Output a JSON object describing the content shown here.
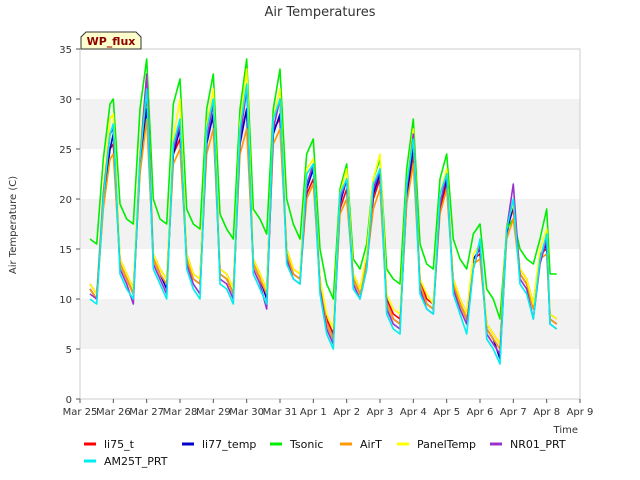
{
  "chart_data": {
    "type": "line",
    "title": "Air Temperatures",
    "xlabel": "Time",
    "ylabel": "Air Temperature (C)",
    "ylim": [
      0,
      35
    ],
    "yticks": [
      0,
      5,
      10,
      15,
      20,
      25,
      30,
      35
    ],
    "xlim": [
      0,
      17
    ],
    "xticks": [
      {
        "x": 0,
        "label": "Mar 25"
      },
      {
        "x": 1,
        "label": "Mar 26"
      },
      {
        "x": 2,
        "label": "Mar 27"
      },
      {
        "x": 3,
        "label": "Mar 28"
      },
      {
        "x": 4,
        "label": "Mar 29"
      },
      {
        "x": 5,
        "label": "Mar 30"
      },
      {
        "x": 6,
        "label": "Mar 31"
      },
      {
        "x": 7,
        "label": "Apr 1"
      },
      {
        "x": 8,
        "label": "Apr 2"
      },
      {
        "x": 9,
        "label": "Apr 3"
      },
      {
        "x": 10,
        "label": "Apr 4"
      },
      {
        "x": 11,
        "label": "Apr 5"
      },
      {
        "x": 12,
        "label": "Apr 6"
      },
      {
        "x": 13,
        "label": "Apr 7"
      },
      {
        "x": 14,
        "label": "Apr 8"
      },
      {
        "x": 15,
        "label": "Apr 9"
      }
    ],
    "site_label": "WP_flux",
    "grid": "horizontal bands",
    "legend_position": "bottom",
    "series": [
      {
        "name": "li75_t",
        "color": "#ff0000",
        "x": [
          0.3,
          0.5,
          0.7,
          0.9,
          1.0,
          1.2,
          1.4,
          1.6,
          1.8,
          2.0,
          2.2,
          2.4,
          2.6,
          2.8,
          3.0,
          3.2,
          3.4,
          3.6,
          3.8,
          4.0,
          4.2,
          4.4,
          4.6,
          4.8,
          5.0,
          5.2,
          5.4,
          5.6,
          5.8,
          6.0,
          6.2,
          6.4,
          6.6,
          6.8,
          7.0,
          7.2,
          7.4,
          7.6,
          7.8,
          8.0,
          8.2,
          8.4,
          8.6,
          8.8,
          9.0,
          9.2,
          9.4,
          9.6,
          9.8,
          10.0,
          10.2,
          10.4,
          10.6,
          10.8,
          11.0,
          11.2,
          11.4,
          11.6,
          11.8,
          12.0,
          12.2,
          12.4,
          12.6,
          12.8,
          13.0,
          13.2,
          13.4,
          13.6,
          13.8,
          14.0,
          14.1,
          14.3
        ],
        "y": [
          11.5,
          10.5,
          20.0,
          25.0,
          25.5,
          14.0,
          12.5,
          11.0,
          23.5,
          30.5,
          14.5,
          13.0,
          12.0,
          24.5,
          26.0,
          14.5,
          12.5,
          12.0,
          26.5,
          28.0,
          13.0,
          12.5,
          11.0,
          26.0,
          29.0,
          14.0,
          12.5,
          11.0,
          27.0,
          28.0,
          15.0,
          13.0,
          12.5,
          20.5,
          22.0,
          12.0,
          8.0,
          6.5,
          19.0,
          21.0,
          12.5,
          11.0,
          14.0,
          20.0,
          22.0,
          10.0,
          8.5,
          8.0,
          20.0,
          24.5,
          12.0,
          10.0,
          9.5,
          19.0,
          21.5,
          12.0,
          10.0,
          8.5,
          14.0,
          14.5,
          7.5,
          6.5,
          5.5,
          17.0,
          19.0,
          13.0,
          12.0,
          9.5,
          14.5,
          15.0,
          8.5,
          8.0
        ]
      },
      {
        "name": "li77_temp",
        "color": "#0000cc",
        "x": [
          0.3,
          0.5,
          0.7,
          0.9,
          1.0,
          1.2,
          1.4,
          1.6,
          1.8,
          2.0,
          2.2,
          2.4,
          2.6,
          2.8,
          3.0,
          3.2,
          3.4,
          3.6,
          3.8,
          4.0,
          4.2,
          4.4,
          4.6,
          4.8,
          5.0,
          5.2,
          5.4,
          5.6,
          5.8,
          6.0,
          6.2,
          6.4,
          6.6,
          6.8,
          7.0,
          7.2,
          7.4,
          7.6,
          7.8,
          8.0,
          8.2,
          8.4,
          8.6,
          8.8,
          9.0,
          9.2,
          9.4,
          9.6,
          9.8,
          10.0,
          10.2,
          10.4,
          10.6,
          10.8,
          11.0,
          11.2,
          11.4,
          11.6,
          11.8,
          12.0,
          12.2,
          12.4,
          12.6,
          12.8,
          13.0,
          13.2,
          13.4,
          13.6,
          13.8,
          14.0,
          14.1,
          14.3
        ],
        "y": [
          11.0,
          10.0,
          19.5,
          25.0,
          26.5,
          13.5,
          12.0,
          10.5,
          23.0,
          29.0,
          14.0,
          12.5,
          11.0,
          24.5,
          27.0,
          14.0,
          12.0,
          11.5,
          25.5,
          28.5,
          12.5,
          12.0,
          10.5,
          25.5,
          29.0,
          13.5,
          12.0,
          10.0,
          26.5,
          28.5,
          14.5,
          12.5,
          12.0,
          21.0,
          23.0,
          11.5,
          7.5,
          6.0,
          19.5,
          22.0,
          12.0,
          10.5,
          13.5,
          20.5,
          22.5,
          9.5,
          8.0,
          7.5,
          20.0,
          25.5,
          11.5,
          9.5,
          9.0,
          19.5,
          22.0,
          11.5,
          9.5,
          8.0,
          14.0,
          15.0,
          7.0,
          6.0,
          4.0,
          16.5,
          19.5,
          12.5,
          11.5,
          9.0,
          14.0,
          15.5,
          8.0,
          7.5
        ]
      },
      {
        "name": "Tsonic",
        "color": "#00ee00",
        "x": [
          0.3,
          0.5,
          0.7,
          0.9,
          1.0,
          1.2,
          1.4,
          1.6,
          1.8,
          2.0,
          2.2,
          2.4,
          2.6,
          2.8,
          3.0,
          3.2,
          3.4,
          3.6,
          3.8,
          4.0,
          4.2,
          4.4,
          4.6,
          4.8,
          5.0,
          5.2,
          5.4,
          5.6,
          5.8,
          6.0,
          6.2,
          6.4,
          6.6,
          6.8,
          7.0,
          7.2,
          7.4,
          7.6,
          7.8,
          8.0,
          8.2,
          8.4,
          8.6,
          8.8,
          9.0,
          9.2,
          9.4,
          9.6,
          9.8,
          10.0,
          10.2,
          10.4,
          10.6,
          10.8,
          11.0,
          11.2,
          11.4,
          11.6,
          11.8,
          12.0,
          12.2,
          12.4,
          12.6,
          12.8,
          13.0,
          13.2,
          13.4,
          13.6,
          13.8,
          14.0,
          14.1,
          14.3
        ],
        "y": [
          16.0,
          15.5,
          24.0,
          29.5,
          30.0,
          19.5,
          18.0,
          17.5,
          29.0,
          34.0,
          20.0,
          18.0,
          17.5,
          29.5,
          32.0,
          19.0,
          17.5,
          17.0,
          29.0,
          32.5,
          18.5,
          17.0,
          16.0,
          29.0,
          34.0,
          19.0,
          18.0,
          16.5,
          29.0,
          33.0,
          20.0,
          17.5,
          16.0,
          24.5,
          26.0,
          15.0,
          11.5,
          10.0,
          21.0,
          23.5,
          14.0,
          13.0,
          15.5,
          22.0,
          24.0,
          13.0,
          12.0,
          11.5,
          23.0,
          28.0,
          15.5,
          13.5,
          13.0,
          22.0,
          24.5,
          16.0,
          14.0,
          13.0,
          16.5,
          17.5,
          11.0,
          10.0,
          8.0,
          17.0,
          18.0,
          15.0,
          14.0,
          13.5,
          16.0,
          19.0,
          12.5,
          12.5
        ]
      },
      {
        "name": "AirT",
        "color": "#ff9900",
        "x": [
          0.3,
          0.5,
          0.7,
          0.9,
          1.0,
          1.2,
          1.4,
          1.6,
          1.8,
          2.0,
          2.2,
          2.4,
          2.6,
          2.8,
          3.0,
          3.2,
          3.4,
          3.6,
          3.8,
          4.0,
          4.2,
          4.4,
          4.6,
          4.8,
          5.0,
          5.2,
          5.4,
          5.6,
          5.8,
          6.0,
          6.2,
          6.4,
          6.6,
          6.8,
          7.0,
          7.2,
          7.4,
          7.6,
          7.8,
          8.0,
          8.2,
          8.4,
          8.6,
          8.8,
          9.0,
          9.2,
          9.4,
          9.6,
          9.8,
          10.0,
          10.2,
          10.4,
          10.6,
          10.8,
          11.0,
          11.2,
          11.4,
          11.6,
          11.8,
          12.0,
          12.2,
          12.4,
          12.6,
          12.8,
          13.0,
          13.2,
          13.4,
          13.6,
          13.8,
          14.0,
          14.1,
          14.3
        ],
        "y": [
          11.0,
          10.0,
          19.0,
          24.0,
          24.5,
          13.5,
          12.0,
          10.5,
          22.5,
          28.0,
          14.0,
          12.5,
          11.5,
          23.5,
          25.0,
          14.0,
          12.0,
          11.5,
          24.5,
          27.0,
          12.5,
          12.0,
          10.5,
          24.5,
          27.0,
          13.5,
          12.0,
          10.5,
          25.5,
          27.0,
          14.5,
          12.5,
          12.0,
          20.0,
          21.5,
          11.5,
          7.5,
          6.0,
          18.5,
          20.0,
          12.0,
          10.5,
          13.5,
          19.0,
          21.0,
          9.5,
          8.0,
          7.5,
          19.5,
          23.5,
          11.5,
          9.5,
          9.0,
          18.5,
          21.0,
          11.5,
          9.5,
          8.0,
          13.5,
          14.0,
          7.0,
          6.0,
          5.0,
          16.0,
          18.0,
          12.5,
          11.5,
          9.0,
          14.0,
          14.5,
          8.0,
          7.5
        ]
      },
      {
        "name": "PanelTemp",
        "color": "#ffff00",
        "x": [
          0.3,
          0.5,
          0.7,
          0.9,
          1.0,
          1.2,
          1.4,
          1.6,
          1.8,
          2.0,
          2.2,
          2.4,
          2.6,
          2.8,
          3.0,
          3.2,
          3.4,
          3.6,
          3.8,
          4.0,
          4.2,
          4.4,
          4.6,
          4.8,
          5.0,
          5.2,
          5.4,
          5.6,
          5.8,
          6.0,
          6.2,
          6.4,
          6.6,
          6.8,
          7.0,
          7.2,
          7.4,
          7.6,
          7.8,
          8.0,
          8.2,
          8.4,
          8.6,
          8.8,
          9.0,
          9.2,
          9.4,
          9.6,
          9.8,
          10.0,
          10.2,
          10.4,
          10.6,
          10.8,
          11.0,
          11.2,
          11.4,
          11.6,
          11.8,
          12.0,
          12.2,
          12.4,
          12.6,
          12.8,
          13.0,
          13.2,
          13.4,
          13.6,
          13.8,
          14.0,
          14.1,
          14.3
        ],
        "y": [
          11.5,
          10.5,
          21.0,
          28.0,
          28.5,
          14.0,
          12.5,
          11.0,
          25.0,
          32.5,
          14.5,
          13.0,
          12.0,
          26.0,
          30.0,
          14.5,
          12.5,
          12.0,
          27.5,
          31.0,
          13.0,
          12.5,
          11.0,
          27.5,
          33.0,
          14.0,
          12.5,
          11.0,
          28.0,
          31.0,
          15.0,
          13.0,
          12.5,
          23.0,
          24.0,
          12.0,
          8.5,
          7.0,
          20.5,
          23.0,
          12.5,
          11.0,
          14.5,
          22.0,
          24.5,
          10.5,
          9.0,
          8.5,
          21.5,
          27.0,
          12.0,
          10.5,
          9.5,
          20.5,
          23.0,
          12.0,
          10.0,
          8.5,
          14.5,
          15.5,
          7.5,
          6.5,
          5.5,
          17.5,
          19.5,
          13.0,
          12.0,
          9.5,
          15.0,
          17.0,
          8.5,
          8.0
        ]
      },
      {
        "name": "NR01_PRT",
        "color": "#9933cc",
        "x": [
          0.3,
          0.5,
          0.7,
          0.9,
          1.0,
          1.2,
          1.4,
          1.6,
          1.8,
          2.0,
          2.2,
          2.4,
          2.6,
          2.8,
          3.0,
          3.2,
          3.4,
          3.6,
          3.8,
          4.0,
          4.2,
          4.4,
          4.6,
          4.8,
          5.0,
          5.2,
          5.4,
          5.6,
          5.8,
          6.0,
          6.2,
          6.4,
          6.6,
          6.8,
          7.0,
          7.2,
          7.4,
          7.6,
          7.8,
          8.0,
          8.2,
          8.4,
          8.6,
          8.8,
          9.0,
          9.2,
          9.4,
          9.6,
          9.8,
          10.0,
          10.2,
          10.4,
          10.6,
          10.8,
          11.0,
          11.2,
          11.4,
          11.6,
          11.8,
          12.0,
          12.2,
          12.4,
          12.6,
          12.8,
          13.0,
          13.2,
          13.4,
          13.6,
          13.8,
          14.0,
          14.1,
          14.3
        ],
        "y": [
          10.5,
          10.0,
          20.5,
          26.5,
          27.0,
          13.0,
          11.5,
          9.5,
          24.0,
          32.5,
          13.5,
          12.0,
          10.5,
          25.0,
          27.5,
          13.5,
          11.5,
          10.5,
          26.0,
          29.5,
          12.0,
          11.5,
          10.0,
          26.0,
          31.0,
          13.0,
          11.5,
          9.0,
          27.0,
          30.0,
          14.0,
          12.0,
          11.5,
          21.5,
          23.5,
          11.0,
          7.0,
          5.5,
          20.0,
          22.0,
          11.5,
          10.0,
          13.0,
          21.0,
          23.0,
          9.0,
          7.5,
          7.0,
          21.0,
          26.5,
          11.0,
          9.0,
          8.5,
          19.5,
          22.5,
          11.0,
          9.0,
          7.5,
          13.0,
          15.5,
          6.5,
          5.5,
          4.5,
          17.0,
          21.5,
          12.0,
          11.0,
          8.0,
          13.5,
          16.0,
          7.5,
          7.0
        ]
      },
      {
        "name": "AM25T_PRT",
        "color": "#00eeee",
        "x": [
          0.3,
          0.5,
          0.7,
          0.9,
          1.0,
          1.2,
          1.4,
          1.6,
          1.8,
          2.0,
          2.2,
          2.4,
          2.6,
          2.8,
          3.0,
          3.2,
          3.4,
          3.6,
          3.8,
          4.0,
          4.2,
          4.4,
          4.6,
          4.8,
          5.0,
          5.2,
          5.4,
          5.6,
          5.8,
          6.0,
          6.2,
          6.4,
          6.6,
          6.8,
          7.0,
          7.2,
          7.4,
          7.6,
          7.8,
          8.0,
          8.2,
          8.4,
          8.6,
          8.8,
          9.0,
          9.2,
          9.4,
          9.6,
          9.8,
          10.0,
          10.2,
          10.4,
          10.6,
          10.8,
          11.0,
          11.2,
          11.4,
          11.6,
          11.8,
          12.0,
          12.2,
          12.4,
          12.6,
          12.8,
          13.0,
          13.2,
          13.4,
          13.6,
          13.8,
          14.0,
          14.1,
          14.3
        ],
        "y": [
          10.0,
          9.5,
          20.0,
          26.5,
          27.5,
          12.5,
          11.0,
          10.0,
          24.0,
          31.0,
          13.0,
          11.5,
          10.0,
          25.5,
          28.0,
          13.0,
          11.0,
          10.0,
          27.0,
          30.0,
          11.5,
          11.0,
          9.5,
          27.0,
          31.5,
          12.5,
          11.0,
          9.5,
          28.0,
          30.0,
          13.5,
          12.0,
          11.5,
          22.5,
          23.5,
          10.5,
          6.5,
          5.0,
          20.5,
          22.0,
          11.0,
          10.0,
          13.0,
          21.5,
          23.0,
          8.5,
          7.0,
          6.5,
          21.5,
          26.0,
          10.5,
          9.0,
          8.5,
          20.5,
          22.5,
          10.5,
          8.5,
          6.5,
          13.0,
          16.0,
          6.0,
          5.0,
          3.5,
          17.0,
          20.0,
          11.5,
          10.5,
          8.0,
          14.0,
          16.5,
          7.5,
          7.0
        ]
      }
    ]
  }
}
